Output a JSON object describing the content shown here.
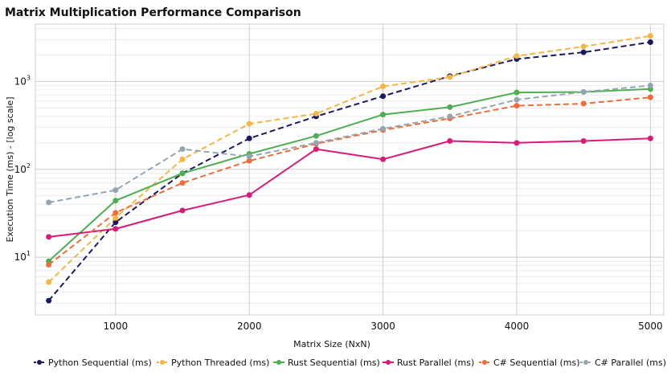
{
  "chart_data": {
    "type": "line",
    "title": "Matrix Multiplication Performance Comparison",
    "xlabel": "Matrix Size (NxN)",
    "ylabel": "Execution Time (ms) - [log scale]",
    "y_scale": "log",
    "xlim": [
      400,
      5100
    ],
    "ylim": [
      2.2,
      4500
    ],
    "x_ticks": [
      1000,
      2000,
      3000,
      4000,
      5000
    ],
    "y_ticks": [
      {
        "value": 10,
        "base": "10",
        "exp": "1"
      },
      {
        "value": 100,
        "base": "10",
        "exp": "2"
      },
      {
        "value": 1000,
        "base": "10",
        "exp": "3"
      }
    ],
    "grid": true,
    "legend_position": "bottom",
    "x": [
      500,
      1000,
      1500,
      2000,
      2500,
      3000,
      3500,
      4000,
      4500,
      5000
    ],
    "series": [
      {
        "name": "Python Sequential (ms)",
        "color": "#1b1a5e",
        "dash": "dashed",
        "values": [
          3.2,
          25,
          90,
          225,
          400,
          680,
          1150,
          1800,
          2150,
          2800
        ]
      },
      {
        "name": "Python Threaded (ms)",
        "color": "#f6b545",
        "dash": "dashed",
        "values": [
          5.2,
          28,
          130,
          330,
          430,
          880,
          1120,
          1950,
          2500,
          3300
        ]
      },
      {
        "name": "Rust Sequential (ms)",
        "color": "#4caf50",
        "dash": "solid",
        "values": [
          9,
          44,
          90,
          150,
          240,
          420,
          510,
          750,
          760,
          820
        ]
      },
      {
        "name": "Rust Parallel (ms)",
        "color": "#d81b78",
        "dash": "solid",
        "values": [
          17,
          21,
          34,
          51,
          170,
          130,
          210,
          200,
          210,
          225
        ]
      },
      {
        "name": "C# Sequential (ms)",
        "color": "#f26b3a",
        "dash": "dashed",
        "values": [
          8.2,
          32,
          70,
          125,
          195,
          280,
          380,
          530,
          560,
          660
        ]
      },
      {
        "name": "C# Parallel (ms)",
        "color": "#95a5b0",
        "dash": "dashed",
        "values": [
          42,
          58,
          170,
          140,
          200,
          290,
          400,
          620,
          760,
          900
        ]
      }
    ]
  }
}
